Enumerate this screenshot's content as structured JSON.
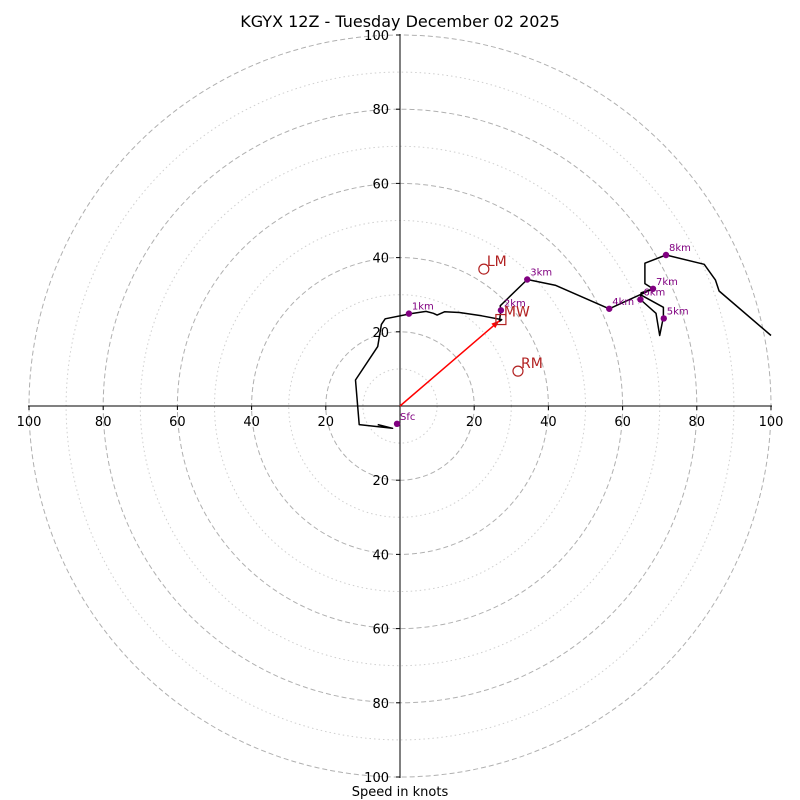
{
  "chart_data": {
    "type": "hodograph",
    "title": "KGYX 12Z - Tuesday December 02 2025",
    "xlabel": "Speed in knots",
    "ylabel": "",
    "xlim": [
      -100,
      100
    ],
    "ylim": [
      -100,
      100
    ],
    "rings_dashed": [
      20,
      40,
      60,
      80,
      100
    ],
    "rings_dotted": [
      10,
      30,
      50,
      70,
      90
    ],
    "x_tick_labels": [
      "100",
      "80",
      "60",
      "40",
      "20",
      "20",
      "40",
      "60",
      "80",
      "100"
    ],
    "y_tick_labels": [
      "100",
      "80",
      "60",
      "40",
      "20",
      "20",
      "40",
      "60",
      "80",
      "100"
    ],
    "hodograph_line": [
      [
        -6,
        -5
      ],
      [
        -2,
        -6
      ],
      [
        -11,
        -5
      ],
      [
        -12,
        7
      ],
      [
        -6,
        16
      ],
      [
        -5,
        22
      ],
      [
        -4,
        23.5
      ],
      [
        3,
        24.9
      ],
      [
        7,
        25.5
      ],
      [
        9,
        25
      ],
      [
        10,
        24.5
      ],
      [
        12,
        25.4
      ],
      [
        16,
        25.2
      ],
      [
        22,
        24.3
      ],
      [
        27.4,
        23.3
      ],
      [
        26.8,
        22.8
      ],
      [
        27.2,
        25.8
      ],
      [
        27,
        27
      ],
      [
        34.3,
        34.1
      ],
      [
        42,
        32.5
      ],
      [
        56.4,
        26.2
      ],
      [
        68.2,
        31.6
      ],
      [
        65,
        30.5
      ],
      [
        64.8,
        28.7
      ],
      [
        69,
        25
      ],
      [
        70,
        19
      ],
      [
        71,
        24
      ],
      [
        71,
        26.6
      ],
      [
        64.8,
        30
      ],
      [
        68.2,
        31.6
      ],
      [
        66,
        33
      ],
      [
        66,
        38.5
      ],
      [
        71.7,
        40.7
      ],
      [
        82,
        38.2
      ],
      [
        85,
        34
      ],
      [
        86,
        31
      ],
      [
        100,
        19
      ]
    ],
    "height_markers": [
      {
        "label": "Sfc",
        "x": -0.8,
        "y": -4.8
      },
      {
        "label": "1km",
        "x": 2.4,
        "y": 24.9
      },
      {
        "label": "2km",
        "x": 27.2,
        "y": 25.8
      },
      {
        "label": "3km",
        "x": 34.3,
        "y": 34.1
      },
      {
        "label": "4km",
        "x": 56.4,
        "y": 26.2
      },
      {
        "label": "5km",
        "x": 71.1,
        "y": 23.6
      },
      {
        "label": "6km",
        "x": 64.8,
        "y": 28.7
      },
      {
        "label": "7km",
        "x": 68.2,
        "y": 31.6
      },
      {
        "label": "8km",
        "x": 71.7,
        "y": 40.7
      }
    ],
    "storm_motions": [
      {
        "label": "LM",
        "x": 22.6,
        "y": 36.9,
        "marker": "circle"
      },
      {
        "label": "MW",
        "x": 27.2,
        "y": 23.3,
        "marker": "square"
      },
      {
        "label": "RM",
        "x": 31.8,
        "y": 9.4,
        "marker": "circle"
      }
    ],
    "shear_vector": {
      "x0": 0,
      "y0": 0,
      "x1": 26.8,
      "y1": 23.0
    },
    "colors": {
      "line": "#000000",
      "marker": "#800080",
      "motion": "#b22222",
      "vector": "#ff0000",
      "grid": "#b0b0b0"
    }
  }
}
